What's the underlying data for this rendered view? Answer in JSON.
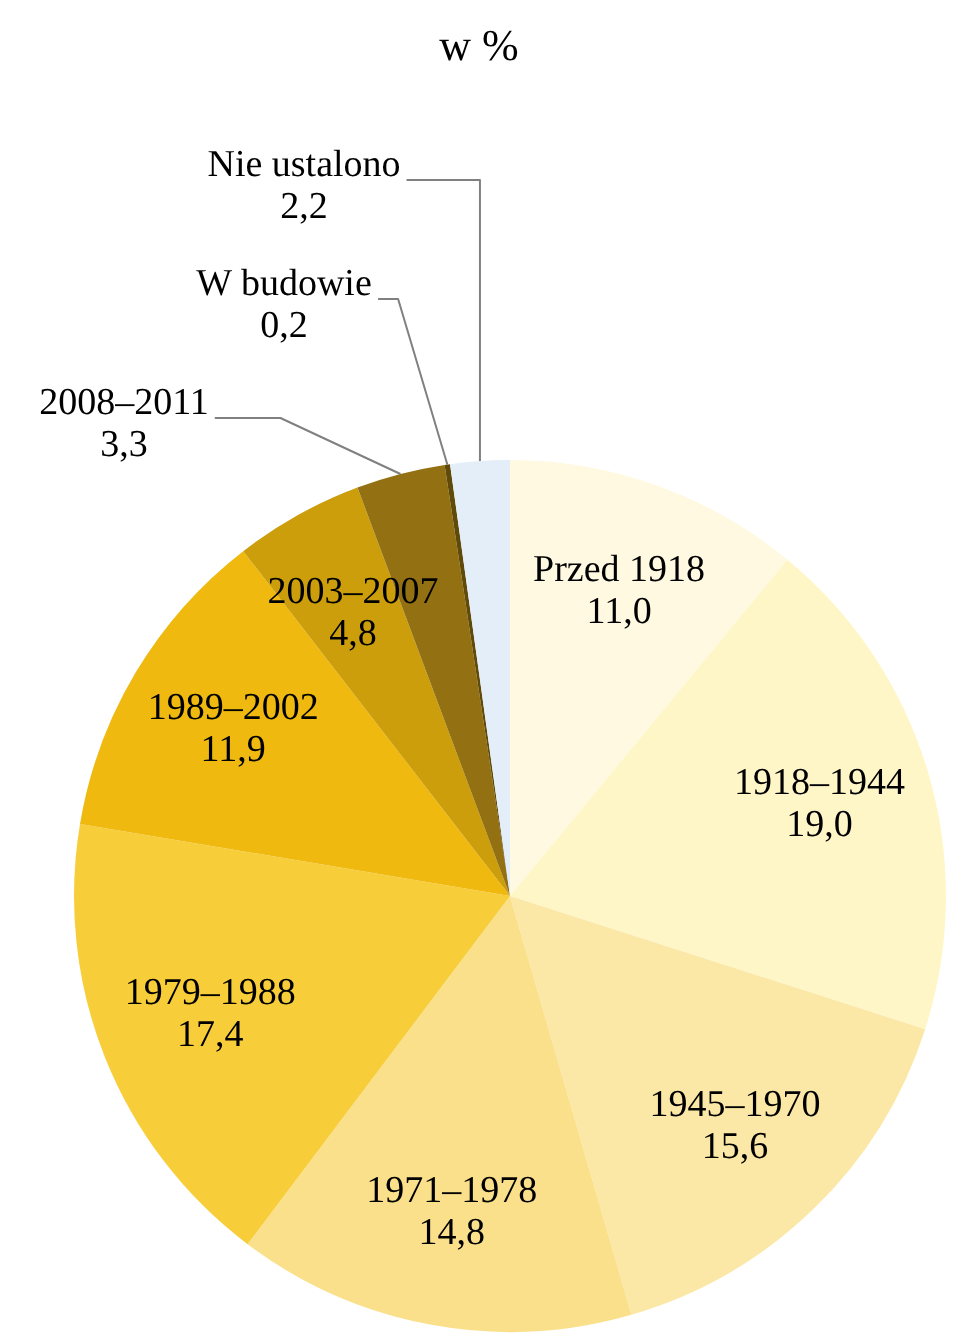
{
  "chart_data": {
    "type": "pie",
    "title": "w %",
    "categories": [
      "Przed 1918",
      "1918–1944",
      "1945–1970",
      "1971–1978",
      "1979–1988",
      "1989–2002",
      "2003–2007",
      "2008–2011",
      "W budowie",
      "Nie ustalono"
    ],
    "values": [
      11.0,
      19.0,
      15.6,
      14.8,
      17.4,
      11.9,
      4.8,
      3.3,
      0.2,
      2.2
    ],
    "value_labels": [
      "11,0",
      "19,0",
      "15,6",
      "14,8",
      "17,4",
      "11,9",
      "4,8",
      "3,3",
      "0,2",
      "2,2"
    ],
    "colors": [
      "#fff9e1",
      "#fff6c8",
      "#fbe8a6",
      "#fae08a",
      "#f8cd3a",
      "#efb90f",
      "#cc9e0c",
      "#937112",
      "#5f4a0a",
      "#e3eef9"
    ]
  }
}
